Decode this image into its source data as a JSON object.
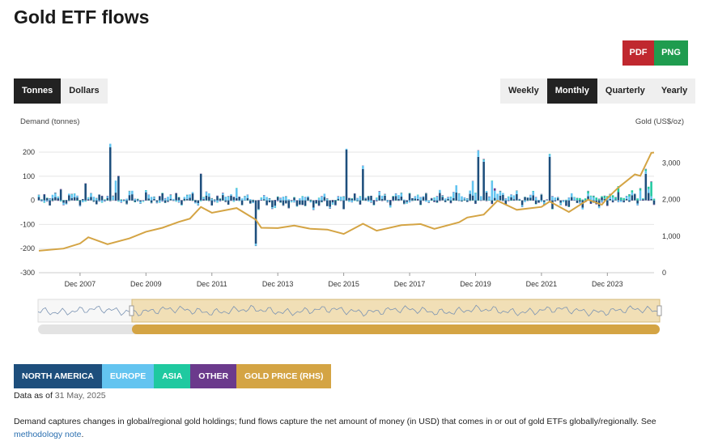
{
  "title": "Gold ETF flows",
  "export": {
    "pdf": "PDF",
    "png": "PNG"
  },
  "unit_toggle": [
    "Tonnes",
    "Dollars"
  ],
  "unit_selected": "Tonnes",
  "period_toggle": [
    "Weekly",
    "Monthly",
    "Quarterly",
    "Yearly"
  ],
  "period_selected": "Monthly",
  "legend": [
    {
      "label": "NORTH AMERICA",
      "color": "#1d4e7c"
    },
    {
      "label": "EUROPE",
      "color": "#63c4f0"
    },
    {
      "label": "ASIA",
      "color": "#1fc9a0"
    },
    {
      "label": "OTHER",
      "color": "#6b3a8c"
    },
    {
      "label": "GOLD PRICE (RHS)",
      "color": "#d4a444"
    }
  ],
  "data_as_of": {
    "prefix": "Data as of",
    "date": "31 May, 2025"
  },
  "note": {
    "text": "Demand captures changes in global/regional gold holdings; fund flows capture the net amount of money (in USD) that comes in or out of gold ETFs globally/regionally. See",
    "link": "methodology note",
    "suffix": "."
  },
  "chart_data": {
    "type": "bar",
    "stacked": true,
    "ylabel": "Demand (tonnes)",
    "y2label": "Gold (US$/oz)",
    "ylim": [
      -300,
      200
    ],
    "yticks": [
      -300,
      -200,
      -100,
      0,
      100,
      200
    ],
    "y2lim": [
      0,
      3300
    ],
    "y2ticks": [
      0,
      1000,
      2000,
      3000
    ],
    "y2ticklabels": [
      "0",
      "1,000",
      "2,000",
      "3,000"
    ],
    "xlim": [
      "2006-09",
      "2025-05"
    ],
    "xticks": [
      "Dec 2007",
      "Dec 2009",
      "Dec 2011",
      "Dec 2013",
      "Dec 2015",
      "Dec 2017",
      "Dec 2019",
      "Dec 2021",
      "Dec 2023"
    ],
    "grid": true,
    "flows_series": [
      {
        "name": "NORTH AMERICA",
        "color": "#1d4e7c",
        "notable": [
          {
            "date": "2007-05",
            "value": 45
          },
          {
            "date": "2008-02",
            "value": 70
          },
          {
            "date": "2008-11",
            "value": 220
          },
          {
            "date": "2009-02",
            "value": 100
          },
          {
            "date": "2011-08",
            "value": 110
          },
          {
            "date": "2013-04",
            "value": -180
          },
          {
            "date": "2016-01",
            "value": 210
          },
          {
            "date": "2016-07",
            "value": 130
          },
          {
            "date": "2020-01",
            "value": 180
          },
          {
            "date": "2020-03",
            "value": 160
          },
          {
            "date": "2022-03",
            "value": 180
          },
          {
            "date": "2025-02",
            "value": 110
          }
        ]
      },
      {
        "name": "EUROPE",
        "color": "#63c4f0",
        "notable": [
          {
            "date": "2009-01",
            "value": 50
          },
          {
            "date": "2012-09",
            "value": 40
          },
          {
            "date": "2019-11",
            "value": 60
          },
          {
            "date": "2020-06",
            "value": 80
          },
          {
            "date": "2024-12",
            "value": 40
          }
        ]
      },
      {
        "name": "ASIA",
        "color": "#1fc9a0",
        "notable": [
          {
            "date": "2024-04",
            "value": 25
          },
          {
            "date": "2025-04",
            "value": 60
          }
        ]
      },
      {
        "name": "OTHER",
        "color": "#6b3a8c",
        "notable": [
          {
            "date": "2020-07",
            "value": 10
          }
        ]
      }
    ],
    "gold_price": {
      "name": "GOLD PRICE (RHS)",
      "color": "#d4a444",
      "points": [
        {
          "date": "2006-09",
          "value": 600
        },
        {
          "date": "2007-06",
          "value": 660
        },
        {
          "date": "2007-12",
          "value": 800
        },
        {
          "date": "2008-03",
          "value": 970
        },
        {
          "date": "2008-10",
          "value": 780
        },
        {
          "date": "2009-06",
          "value": 940
        },
        {
          "date": "2009-12",
          "value": 1120
        },
        {
          "date": "2010-06",
          "value": 1230
        },
        {
          "date": "2010-12",
          "value": 1390
        },
        {
          "date": "2011-04",
          "value": 1480
        },
        {
          "date": "2011-08",
          "value": 1800
        },
        {
          "date": "2011-12",
          "value": 1640
        },
        {
          "date": "2012-09",
          "value": 1770
        },
        {
          "date": "2013-04",
          "value": 1450
        },
        {
          "date": "2013-06",
          "value": 1230
        },
        {
          "date": "2013-12",
          "value": 1220
        },
        {
          "date": "2014-06",
          "value": 1290
        },
        {
          "date": "2014-12",
          "value": 1200
        },
        {
          "date": "2015-06",
          "value": 1180
        },
        {
          "date": "2015-12",
          "value": 1060
        },
        {
          "date": "2016-07",
          "value": 1340
        },
        {
          "date": "2016-12",
          "value": 1150
        },
        {
          "date": "2017-09",
          "value": 1300
        },
        {
          "date": "2018-04",
          "value": 1330
        },
        {
          "date": "2018-09",
          "value": 1200
        },
        {
          "date": "2019-06",
          "value": 1380
        },
        {
          "date": "2019-09",
          "value": 1510
        },
        {
          "date": "2020-03",
          "value": 1590
        },
        {
          "date": "2020-08",
          "value": 1970
        },
        {
          "date": "2021-03",
          "value": 1720
        },
        {
          "date": "2021-12",
          "value": 1800
        },
        {
          "date": "2022-03",
          "value": 1950
        },
        {
          "date": "2022-10",
          "value": 1660
        },
        {
          "date": "2023-05",
          "value": 2000
        },
        {
          "date": "2023-10",
          "value": 1860
        },
        {
          "date": "2023-12",
          "value": 2040
        },
        {
          "date": "2024-04",
          "value": 2330
        },
        {
          "date": "2024-10",
          "value": 2690
        },
        {
          "date": "2024-12",
          "value": 2650
        },
        {
          "date": "2025-04",
          "value": 3280
        },
        {
          "date": "2025-05",
          "value": 3290
        }
      ]
    }
  }
}
